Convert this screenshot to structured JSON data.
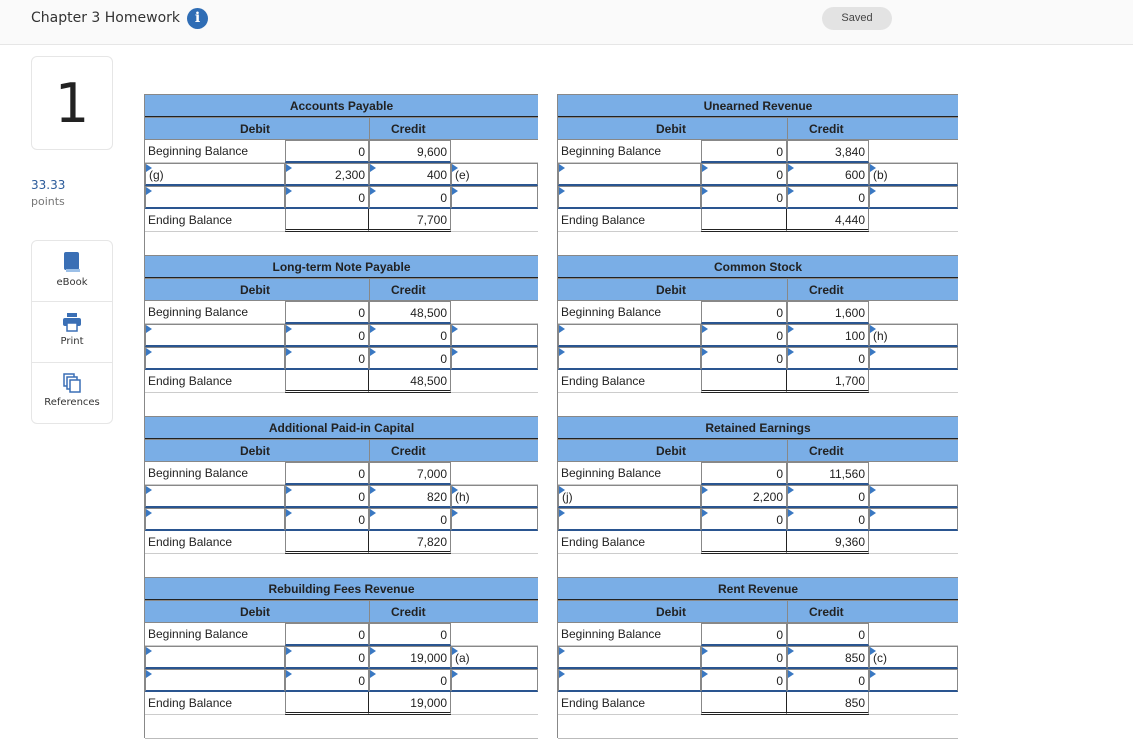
{
  "header": {
    "title": "Chapter 3 Homework",
    "status": "Saved"
  },
  "question": {
    "number": "1",
    "points": "33.33",
    "points_label": "points"
  },
  "tools": [
    {
      "label": "eBook",
      "icon": "book-icon"
    },
    {
      "label": "Print",
      "icon": "printer-icon"
    },
    {
      "label": "References",
      "icon": "copy-icon"
    }
  ],
  "labels": {
    "debit": "Debit",
    "credit": "Credit",
    "beginning": "Beginning Balance",
    "ending": "Ending Balance"
  },
  "accounts": [
    {
      "title": "Accounts Payable",
      "begin": [
        "0",
        "9,600"
      ],
      "rows": [
        {
          "label": "(g)",
          "debit": "2,300",
          "credit": "400",
          "note": "(e)"
        },
        {
          "label": "",
          "debit": "0",
          "credit": "0",
          "note": ""
        }
      ],
      "end": [
        "",
        "7,700"
      ]
    },
    {
      "title": "Unearned Revenue",
      "begin": [
        "0",
        "3,840"
      ],
      "rows": [
        {
          "label": "",
          "debit": "0",
          "credit": "600",
          "note": "(b)"
        },
        {
          "label": "",
          "debit": "0",
          "credit": "0",
          "note": ""
        }
      ],
      "end": [
        "",
        "4,440"
      ]
    },
    {
      "title": "Long-term Note Payable",
      "begin": [
        "0",
        "48,500"
      ],
      "rows": [
        {
          "label": "",
          "debit": "0",
          "credit": "0",
          "note": ""
        },
        {
          "label": "",
          "debit": "0",
          "credit": "0",
          "note": ""
        }
      ],
      "end": [
        "",
        "48,500"
      ]
    },
    {
      "title": "Common Stock",
      "begin": [
        "0",
        "1,600"
      ],
      "rows": [
        {
          "label": "",
          "debit": "0",
          "credit": "100",
          "note": "(h)"
        },
        {
          "label": "",
          "debit": "0",
          "credit": "0",
          "note": ""
        }
      ],
      "end": [
        "",
        "1,700"
      ]
    },
    {
      "title": "Additional Paid-in Capital",
      "begin": [
        "0",
        "7,000"
      ],
      "rows": [
        {
          "label": "",
          "debit": "0",
          "credit": "820",
          "note": "(h)"
        },
        {
          "label": "",
          "debit": "0",
          "credit": "0",
          "note": ""
        }
      ],
      "end": [
        "",
        "7,820"
      ]
    },
    {
      "title": "Retained Earnings",
      "begin": [
        "0",
        "11,560"
      ],
      "rows": [
        {
          "label": "(j)",
          "debit": "2,200",
          "credit": "0",
          "note": ""
        },
        {
          "label": "",
          "debit": "0",
          "credit": "0",
          "note": ""
        }
      ],
      "end": [
        "",
        "9,360"
      ]
    },
    {
      "title": "Rebuilding Fees Revenue",
      "begin": [
        "0",
        "0"
      ],
      "rows": [
        {
          "label": "",
          "debit": "0",
          "credit": "19,000",
          "note": "(a)"
        },
        {
          "label": "",
          "debit": "0",
          "credit": "0",
          "note": ""
        }
      ],
      "end": [
        "",
        "19,000"
      ]
    },
    {
      "title": "Rent Revenue",
      "begin": [
        "0",
        "0"
      ],
      "rows": [
        {
          "label": "",
          "debit": "0",
          "credit": "850",
          "note": "(c)"
        },
        {
          "label": "",
          "debit": "0",
          "credit": "0",
          "note": ""
        }
      ],
      "end": [
        "",
        "850"
      ]
    }
  ]
}
